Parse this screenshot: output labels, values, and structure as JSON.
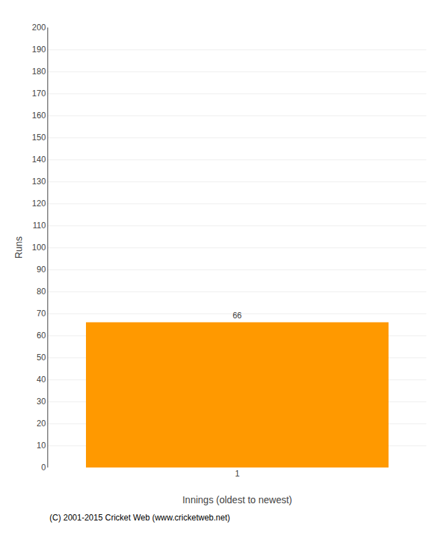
{
  "chart_data": {
    "type": "bar",
    "xlabel": "Innings (oldest to newest)",
    "ylabel": "Runs",
    "categories": [
      "1"
    ],
    "values": [
      66
    ],
    "color": "#FF9900",
    "ylim": [
      0,
      200
    ],
    "yticks": [
      0,
      10,
      20,
      30,
      40,
      50,
      60,
      70,
      80,
      90,
      100,
      110,
      120,
      130,
      140,
      150,
      160,
      170,
      180,
      190,
      200
    ],
    "grid": true,
    "data_labels": true,
    "annotations": [
      "(C) 2001-2015 Cricket Web (www.cricketweb.net)"
    ]
  }
}
